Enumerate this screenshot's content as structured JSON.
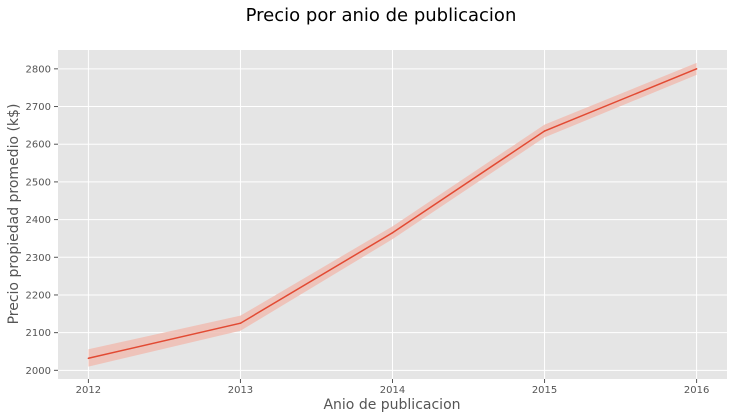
{
  "chart_data": {
    "type": "line",
    "title": "Precio por anio de publicacion",
    "xlabel": "Anio de publicacion",
    "ylabel": "Precio propiedad promedio (k$)",
    "x": [
      2012,
      2013,
      2014,
      2015,
      2016
    ],
    "x_ticks": [
      "2012",
      "2013",
      "2014",
      "2015",
      "2016"
    ],
    "y_ticks": [
      "2000",
      "2100",
      "2200",
      "2300",
      "2400",
      "2500",
      "2600",
      "2700",
      "2800"
    ],
    "ylim": [
      1977,
      2850
    ],
    "xlim": [
      2011.8,
      2016.2
    ],
    "grid": true,
    "series": [
      {
        "values": [
          2032,
          2125,
          2365,
          2635,
          2800
        ],
        "ci_lower": [
          2010,
          2105,
          2348,
          2618,
          2784
        ],
        "ci_upper": [
          2056,
          2145,
          2382,
          2652,
          2816
        ],
        "color": "#E24A33",
        "band_color": "#F0BDB3"
      }
    ],
    "plot_background": "#E5E5E5",
    "grid_color": "#FFFFFF"
  }
}
